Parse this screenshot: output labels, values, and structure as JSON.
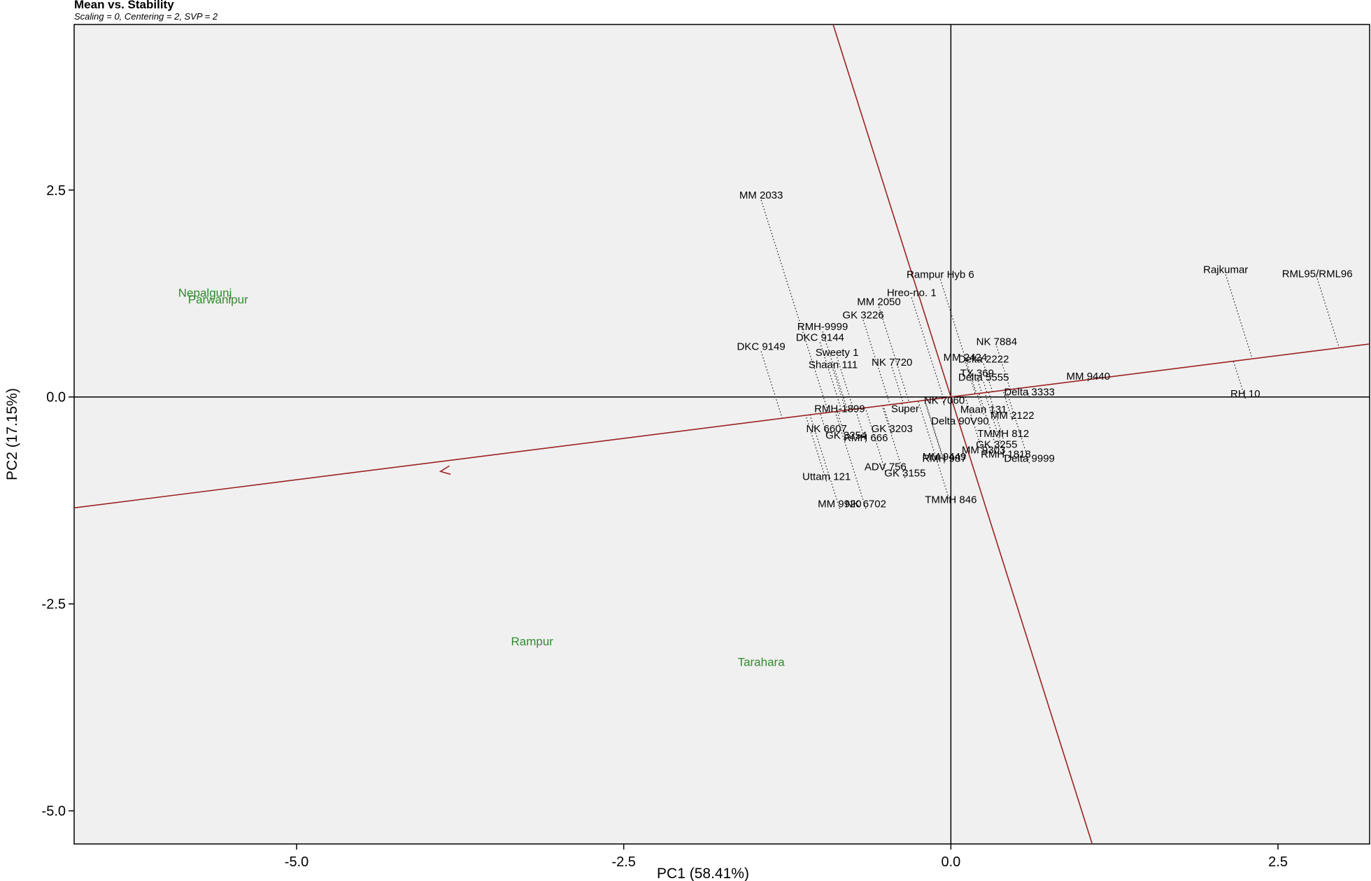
{
  "chart_data": {
    "type": "scatter",
    "plot_kind": "GGE biplot - Mean vs. Stability",
    "title": "Mean vs. Stability",
    "subtitle": "Scaling = 0, Centering = 2, SVP = 2",
    "xlabel": "PC1 (58.41%)",
    "ylabel": "PC2 (17.15%)",
    "xlim": [
      -6.7,
      3.2
    ],
    "ylim": [
      -5.4,
      4.5
    ],
    "x_ticks": [
      {
        "value": -5.0,
        "label": "-5.0"
      },
      {
        "value": -2.5,
        "label": "-2.5"
      },
      {
        "value": 0.0,
        "label": "0.0"
      },
      {
        "value": 2.5,
        "label": "2.5"
      }
    ],
    "y_ticks": [
      {
        "value": 2.5,
        "label": "2.5"
      },
      {
        "value": 0.0,
        "label": "0.0"
      },
      {
        "value": -2.5,
        "label": "-2.5"
      },
      {
        "value": -5.0,
        "label": "-5.0"
      }
    ],
    "grid": false,
    "colors": {
      "panel": "#f0f0f0",
      "axis_line": "#000000",
      "aec_line": "#9b2222",
      "genotype_text": "#000000",
      "environment_text": "#2e8b2e",
      "projection": "#000000"
    },
    "aec_abscissa_slope": 0.2,
    "arrow_at": {
      "x": -3.9,
      "y": -0.9
    },
    "environments": [
      {
        "name": "Nepalgunj",
        "x": -5.7,
        "y": 1.26
      },
      {
        "name": "Parwanipur",
        "x": -5.6,
        "y": 1.18
      },
      {
        "name": "Rampur",
        "x": -3.2,
        "y": -2.95
      },
      {
        "name": "Tarahara",
        "x": -1.45,
        "y": -3.2
      }
    ],
    "genotypes": [
      {
        "name": "MM 2033",
        "x": -1.45,
        "y": 2.38
      },
      {
        "name": "Rampur Hyb 6",
        "x": -0.08,
        "y": 1.42
      },
      {
        "name": "Hreo-no. 1",
        "x": -0.3,
        "y": 1.2
      },
      {
        "name": "MM 2050",
        "x": -0.55,
        "y": 1.09
      },
      {
        "name": "GK 3226",
        "x": -0.67,
        "y": 0.93
      },
      {
        "name": "RMH-9999",
        "x": -0.98,
        "y": 0.79
      },
      {
        "name": "DKC 9144",
        "x": -1.0,
        "y": 0.66
      },
      {
        "name": "DKC 9149",
        "x": -1.45,
        "y": 0.55
      },
      {
        "name": "Sweety 1",
        "x": -0.87,
        "y": 0.48
      },
      {
        "name": "Shaan 111",
        "x": -0.9,
        "y": 0.33
      },
      {
        "name": "NK 7720",
        "x": -0.45,
        "y": 0.36
      },
      {
        "name": "NK 7884",
        "x": 0.35,
        "y": 0.61
      },
      {
        "name": "MM 2424",
        "x": 0.11,
        "y": 0.42
      },
      {
        "name": "Delta 2222",
        "x": 0.25,
        "y": 0.4
      },
      {
        "name": "TX 369",
        "x": 0.2,
        "y": 0.23
      },
      {
        "name": "Delta 5555",
        "x": 0.25,
        "y": 0.18
      },
      {
        "name": "MM 9440",
        "x": 1.05,
        "y": 0.19
      },
      {
        "name": "Delta 3333",
        "x": 0.6,
        "y": 0.0
      },
      {
        "name": "RH 10",
        "x": 2.25,
        "y": -0.02
      },
      {
        "name": "Rajkumar",
        "x": 2.1,
        "y": 1.48
      },
      {
        "name": "RML95/RML96",
        "x": 2.8,
        "y": 1.43
      },
      {
        "name": "NK 7060",
        "x": -0.05,
        "y": -0.1
      },
      {
        "name": "RMH-1899",
        "x": -0.85,
        "y": -0.2
      },
      {
        "name": "Super",
        "x": -0.35,
        "y": -0.2
      },
      {
        "name": "Maan 131",
        "x": 0.25,
        "y": -0.21
      },
      {
        "name": "MM 2122",
        "x": 0.47,
        "y": -0.28
      },
      {
        "name": "Delta 90V90",
        "x": 0.07,
        "y": -0.35
      },
      {
        "name": "NK 6607",
        "x": -0.95,
        "y": -0.44
      },
      {
        "name": "GK 3203",
        "x": -0.45,
        "y": -0.44
      },
      {
        "name": "GK 3254",
        "x": -0.8,
        "y": -0.52
      },
      {
        "name": "RMH 666",
        "x": -0.65,
        "y": -0.55
      },
      {
        "name": "TMMH 812",
        "x": 0.4,
        "y": -0.5
      },
      {
        "name": "GK 3255",
        "x": 0.35,
        "y": -0.63
      },
      {
        "name": "MM 9303",
        "x": 0.25,
        "y": -0.7
      },
      {
        "name": "RMH 1818",
        "x": 0.42,
        "y": -0.75
      },
      {
        "name": "Delta 9999",
        "x": 0.6,
        "y": -0.8
      },
      {
        "name": "MM 9449",
        "x": -0.05,
        "y": -0.78
      },
      {
        "name": "RMH 987",
        "x": -0.05,
        "y": -0.8
      },
      {
        "name": "ADV 756",
        "x": -0.5,
        "y": -0.9
      },
      {
        "name": "GK 3155",
        "x": -0.35,
        "y": -0.98
      },
      {
        "name": "Uttam 121",
        "x": -0.95,
        "y": -1.02
      },
      {
        "name": "TMMH 846",
        "x": 0.0,
        "y": -1.3
      },
      {
        "name": "MM 9920",
        "x": -0.85,
        "y": -1.35
      },
      {
        "name": "NK 6702",
        "x": -0.65,
        "y": -1.35
      }
    ]
  }
}
